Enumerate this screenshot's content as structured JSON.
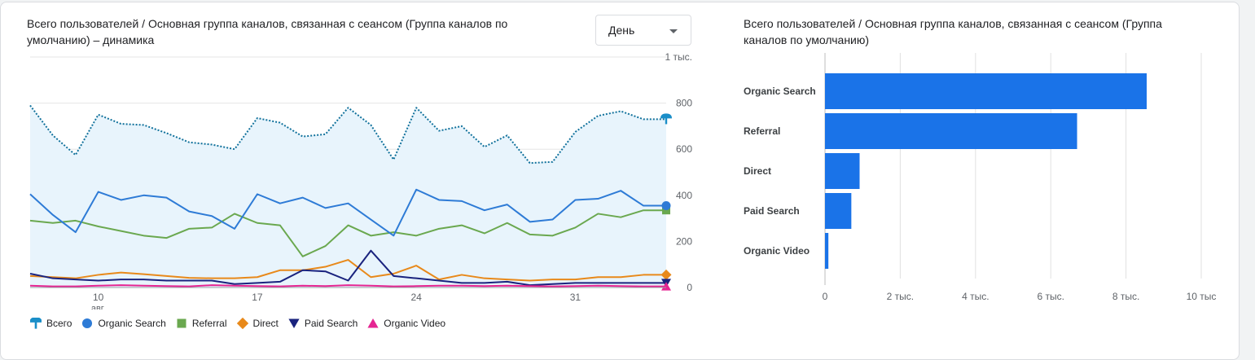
{
  "left_title": "Всего пользователей / Основная группа каналов, связанная с сеансом (Группа каналов по умолчанию) – динамика",
  "right_title": "Всего пользователей / Основная группа каналов, связанная с сеансом (Группа каналов по умолчанию)",
  "granularity_select": {
    "value": "День"
  },
  "colors": {
    "total": "#1a73e8",
    "total_fill": "#e8f4fc",
    "total_line": "#12729c",
    "organic_search": "#2e7bd6",
    "referral": "#6aa84f",
    "direct": "#e8891a",
    "paid_search": "#1a237e",
    "organic_video": "#e52592",
    "bar": "#1a73e8"
  },
  "legend": [
    {
      "label": "Всего",
      "icon": "pin-icon",
      "color": "#1a8ec8"
    },
    {
      "label": "Organic Search",
      "icon": "circle-icon",
      "color": "#2e7bd6"
    },
    {
      "label": "Referral",
      "icon": "square-icon",
      "color": "#6aa84f"
    },
    {
      "label": "Direct",
      "icon": "diamond-icon",
      "color": "#e8891a"
    },
    {
      "label": "Paid Search",
      "icon": "triangle-down-icon",
      "color": "#1a237e"
    },
    {
      "label": "Organic Video",
      "icon": "triangle-up-icon",
      "color": "#e52592"
    }
  ],
  "chart_data": [
    {
      "type": "line",
      "y_tick_labels": [
        "0",
        "200",
        "400",
        "600",
        "800",
        "1 тыс."
      ],
      "y_ticks": [
        0,
        200,
        400,
        600,
        800,
        1000
      ],
      "ylim": [
        0,
        1000
      ],
      "x_tick_labels": [
        {
          "day": 10,
          "label": "10",
          "sub": "авг."
        },
        {
          "day": 17,
          "label": "17",
          "sub": ""
        },
        {
          "day": 24,
          "label": "24",
          "sub": ""
        },
        {
          "day": 31,
          "label": "31",
          "sub": ""
        }
      ],
      "x_days": [
        7,
        8,
        9,
        10,
        11,
        12,
        13,
        14,
        15,
        16,
        17,
        18,
        19,
        20,
        21,
        22,
        23,
        24,
        25,
        26,
        27,
        28,
        29,
        30,
        31,
        32,
        33,
        34,
        35
      ],
      "xlim": [
        7,
        35
      ],
      "series": [
        {
          "name": "Всего",
          "key": "total",
          "values": [
            790,
            660,
            575,
            750,
            710,
            705,
            670,
            630,
            620,
            600,
            735,
            715,
            655,
            665,
            780,
            705,
            555,
            780,
            680,
            700,
            610,
            660,
            540,
            545,
            675,
            745,
            765,
            730,
            730
          ]
        },
        {
          "name": "Organic Search",
          "key": "organic_search",
          "values": [
            405,
            315,
            240,
            415,
            380,
            400,
            390,
            330,
            310,
            255,
            405,
            365,
            390,
            345,
            365,
            295,
            225,
            425,
            380,
            375,
            335,
            360,
            285,
            295,
            380,
            385,
            420,
            355,
            355
          ]
        },
        {
          "name": "Referral",
          "key": "referral",
          "values": [
            290,
            280,
            290,
            265,
            245,
            225,
            215,
            255,
            260,
            320,
            280,
            270,
            135,
            180,
            270,
            225,
            240,
            225,
            255,
            270,
            235,
            280,
            230,
            225,
            260,
            320,
            305,
            335,
            335
          ]
        },
        {
          "name": "Direct",
          "key": "direct",
          "values": [
            50,
            45,
            40,
            55,
            65,
            58,
            50,
            42,
            40,
            40,
            45,
            75,
            75,
            90,
            120,
            45,
            60,
            95,
            35,
            55,
            40,
            35,
            30,
            35,
            35,
            45,
            45,
            55,
            55
          ]
        },
        {
          "name": "Paid Search",
          "key": "paid_search",
          "values": [
            60,
            40,
            35,
            30,
            35,
            35,
            30,
            30,
            30,
            15,
            20,
            25,
            75,
            70,
            30,
            160,
            50,
            40,
            30,
            20,
            20,
            25,
            10,
            15,
            20,
            20,
            20,
            20,
            20
          ]
        },
        {
          "name": "Organic Video",
          "key": "organic_video",
          "values": [
            8,
            5,
            5,
            8,
            10,
            8,
            6,
            5,
            10,
            8,
            6,
            5,
            8,
            6,
            10,
            8,
            5,
            6,
            8,
            8,
            6,
            8,
            6,
            5,
            6,
            8,
            6,
            5,
            5
          ]
        }
      ]
    },
    {
      "type": "bar",
      "orientation": "horizontal",
      "categories": [
        "Organic Search",
        "Referral",
        "Direct",
        "Paid Search",
        "Organic Video"
      ],
      "values": [
        8550,
        6700,
        920,
        700,
        90
      ],
      "xlim": [
        0,
        10000
      ],
      "x_ticks": [
        0,
        2000,
        4000,
        6000,
        8000,
        10000
      ],
      "x_tick_labels": [
        "0",
        "2 тыс.",
        "4 тыс.",
        "6 тыс.",
        "8 тыс.",
        "10 тыс"
      ]
    }
  ]
}
